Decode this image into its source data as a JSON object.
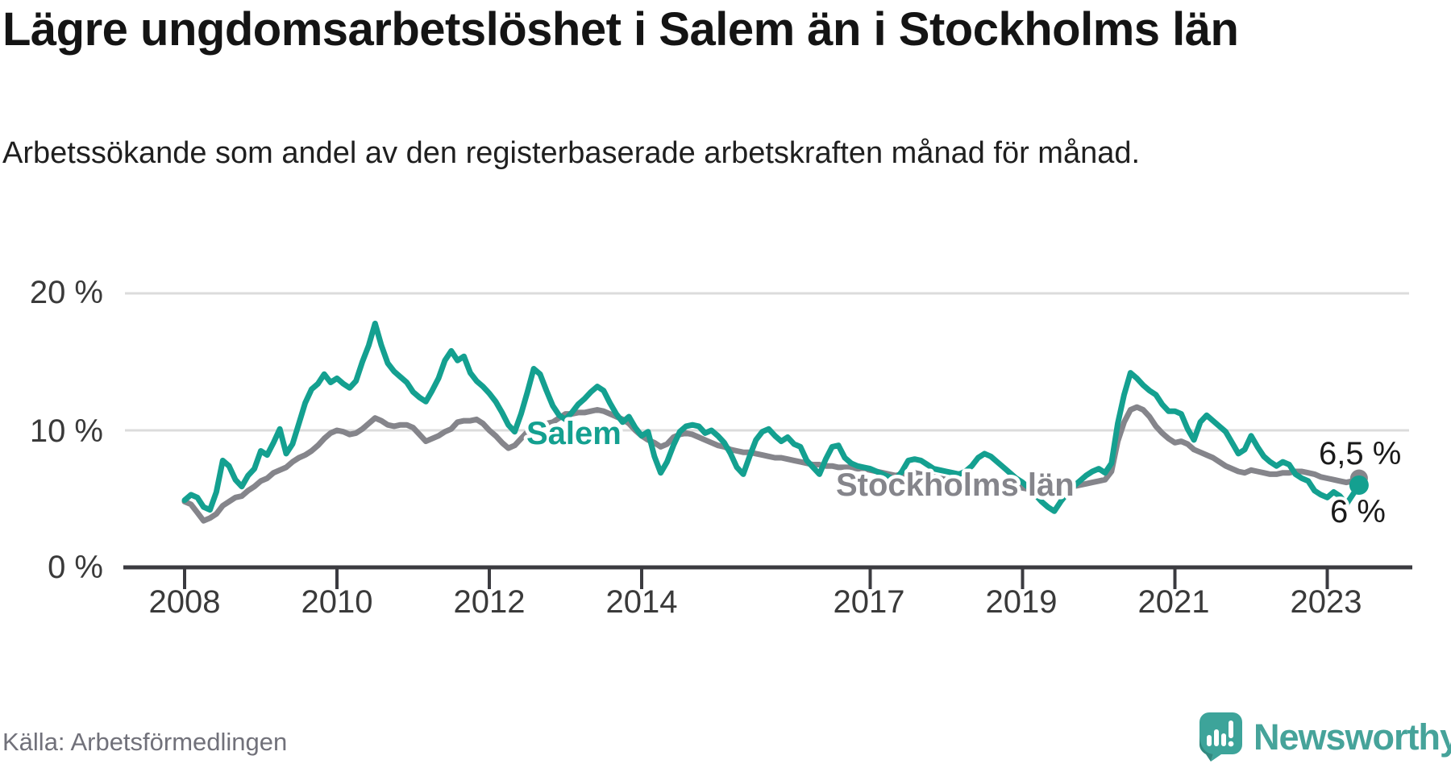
{
  "header": {
    "title": "Lägre ungdomsarbetslöshet i Salem än i Stockholms län",
    "subtitle": "Arbetssökande som andel av den registerbaserade arbetskraften månad för månad."
  },
  "footer": {
    "source": "Källa: Arbetsförmedlingen",
    "brand": "Newsworthy"
  },
  "chart_data": {
    "type": "line",
    "title": "Lägre ungdomsarbetslöshet i Salem än i Stockholms län",
    "subtitle": "Arbetssökande som andel av den registerbaserade arbetskraften månad för månad.",
    "unit": "%",
    "x_start": 2008,
    "x_step_months": 1,
    "ylim": [
      0,
      23
    ],
    "grid": "horizontal",
    "y_ticks": [
      {
        "value": 0,
        "label": "0 %"
      },
      {
        "value": 10,
        "label": "10 %"
      },
      {
        "value": 20,
        "label": "20 %"
      }
    ],
    "x_ticks": [
      {
        "year": 2008,
        "label": "2008"
      },
      {
        "year": 2010,
        "label": "2010"
      },
      {
        "year": 2012,
        "label": "2012"
      },
      {
        "year": 2014,
        "label": "2014"
      },
      {
        "year": 2017,
        "label": "2017"
      },
      {
        "year": 2019,
        "label": "2019"
      },
      {
        "year": 2021,
        "label": "2021"
      },
      {
        "year": 2023,
        "label": "2023"
      }
    ],
    "series": [
      {
        "name": "Stockholms län",
        "slug": "stockholms-lan",
        "color": "#85858b",
        "dot_radius": 11,
        "values": [
          4.8,
          4.6,
          4.0,
          3.4,
          3.6,
          3.9,
          4.5,
          4.8,
          5.1,
          5.2,
          5.6,
          5.9,
          6.3,
          6.5,
          6.9,
          7.1,
          7.3,
          7.7,
          8.0,
          8.2,
          8.5,
          8.9,
          9.4,
          9.8,
          10.0,
          9.9,
          9.7,
          9.8,
          10.1,
          10.5,
          10.9,
          10.7,
          10.4,
          10.3,
          10.4,
          10.4,
          10.2,
          9.7,
          9.2,
          9.4,
          9.6,
          9.9,
          10.1,
          10.6,
          10.7,
          10.7,
          10.8,
          10.5,
          10.0,
          9.6,
          9.1,
          8.7,
          8.9,
          9.4,
          9.9,
          10.5,
          10.6,
          10.5,
          10.6,
          10.9,
          11.2,
          11.2,
          11.3,
          11.3,
          11.4,
          11.5,
          11.4,
          11.2,
          11.0,
          10.8,
          10.5,
          10.0,
          9.6,
          9.3,
          9.1,
          8.8,
          9.0,
          9.5,
          9.7,
          9.8,
          9.7,
          9.5,
          9.3,
          9.1,
          8.9,
          8.8,
          8.6,
          8.5,
          8.4,
          8.4,
          8.3,
          8.2,
          8.1,
          8.0,
          8.0,
          7.9,
          7.8,
          7.7,
          7.6,
          7.5,
          7.5,
          7.4,
          7.4,
          7.3,
          7.3,
          7.3,
          7.2,
          7.2,
          7.1,
          7.0,
          6.9,
          6.8,
          6.7,
          6.8,
          6.9,
          6.9,
          6.8,
          6.7,
          6.6,
          6.5,
          6.4,
          6.3,
          6.2,
          6.2,
          6.3,
          6.4,
          6.4,
          6.3,
          6.2,
          6.1,
          6.0,
          5.9,
          5.8,
          5.7,
          5.6,
          5.6,
          5.7,
          5.8,
          5.9,
          5.9,
          5.9,
          6.0,
          6.1,
          6.2,
          6.3,
          6.4,
          7.0,
          9.2,
          10.6,
          11.5,
          11.7,
          11.5,
          11.0,
          10.3,
          9.8,
          9.4,
          9.1,
          9.2,
          9.0,
          8.6,
          8.4,
          8.2,
          8.0,
          7.7,
          7.4,
          7.2,
          7.0,
          6.9,
          7.1,
          7.0,
          6.9,
          6.8,
          6.8,
          6.9,
          6.9,
          7.0,
          7.0,
          6.9,
          6.8,
          6.6,
          6.5,
          6.4,
          6.3,
          6.2,
          6.3,
          6.5
        ]
      },
      {
        "name": "Salem",
        "slug": "salem",
        "color": "#14a090",
        "dot_radius": 12,
        "values": [
          4.9,
          5.3,
          5.1,
          4.4,
          4.2,
          5.5,
          7.8,
          7.4,
          6.4,
          5.9,
          6.7,
          7.2,
          8.5,
          8.2,
          9.1,
          10.1,
          8.3,
          9.0,
          10.5,
          12.0,
          13.0,
          13.4,
          14.1,
          13.5,
          13.8,
          13.4,
          13.1,
          13.6,
          15.0,
          16.2,
          17.8,
          16.2,
          14.9,
          14.3,
          13.9,
          13.5,
          12.8,
          12.4,
          12.1,
          12.9,
          13.8,
          15.1,
          15.8,
          15.1,
          15.4,
          14.2,
          13.6,
          13.2,
          12.7,
          12.1,
          11.3,
          10.4,
          9.9,
          11.2,
          12.8,
          14.5,
          14.1,
          12.9,
          11.8,
          11.1,
          10.8,
          11.3,
          11.9,
          12.3,
          12.8,
          13.2,
          12.9,
          12.0,
          11.2,
          10.6,
          11.0,
          10.2,
          9.6,
          9.9,
          8.1,
          6.9,
          7.7,
          8.9,
          9.9,
          10.3,
          10.4,
          10.3,
          9.8,
          10.0,
          9.6,
          9.1,
          8.3,
          7.3,
          6.8,
          8.1,
          9.3,
          9.9,
          10.1,
          9.6,
          9.2,
          9.5,
          9.0,
          8.8,
          7.8,
          7.3,
          6.8,
          7.9,
          8.8,
          8.9,
          8.0,
          7.6,
          7.4,
          7.3,
          7.2,
          7.0,
          6.8,
          6.6,
          6.4,
          7.0,
          7.8,
          7.9,
          7.8,
          7.5,
          7.2,
          7.1,
          7.0,
          6.9,
          6.8,
          7.0,
          7.4,
          8.0,
          8.3,
          8.1,
          7.7,
          7.3,
          6.9,
          6.5,
          6.2,
          5.8,
          5.3,
          4.8,
          4.4,
          4.1,
          4.8,
          5.4,
          5.9,
          6.3,
          6.7,
          7.0,
          7.2,
          6.9,
          7.6,
          10.5,
          12.6,
          14.2,
          13.8,
          13.3,
          12.9,
          12.6,
          11.9,
          11.4,
          11.4,
          11.2,
          10.1,
          9.3,
          10.6,
          11.1,
          10.7,
          10.3,
          9.9,
          9.1,
          8.3,
          8.6,
          9.6,
          8.8,
          8.1,
          7.7,
          7.4,
          7.7,
          7.5,
          6.8,
          6.5,
          6.3,
          5.6,
          5.3,
          5.1,
          5.5,
          5.2,
          4.6,
          5.3,
          6.0
        ]
      }
    ],
    "annotations": {
      "series_labels": [
        {
          "text": "Salem",
          "color": "#14a090"
        },
        {
          "text": "Stockholms län",
          "color": "#85858b"
        }
      ],
      "end_value_labels": [
        {
          "series": "Stockholms län",
          "text": "6,5 %"
        },
        {
          "series": "Salem",
          "text": "6 %"
        }
      ]
    },
    "legend_position": "inline-labels",
    "xlabel": "",
    "ylabel": ""
  }
}
